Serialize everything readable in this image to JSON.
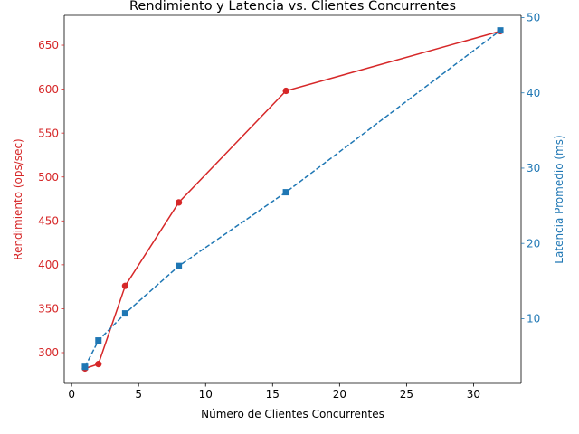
{
  "chart_data": {
    "type": "line",
    "title": "Rendimiento y Latencia vs. Clientes Concurrentes",
    "xlabel": "Número de Clientes Concurrentes",
    "ylabel_left": "Rendimiento (ops/sec)",
    "ylabel_right": "Latencia Promedio (ms)",
    "x": [
      1,
      2,
      4,
      8,
      16,
      32
    ],
    "xlim": [
      -0.55,
      33.55
    ],
    "xticks": [
      0,
      5,
      10,
      15,
      20,
      25,
      30
    ],
    "ylim_left": [
      265,
      684
    ],
    "yticks_left": [
      300,
      350,
      400,
      450,
      500,
      550,
      600,
      650
    ],
    "ylim_right": [
      1.4,
      50.3
    ],
    "yticks_right": [
      10,
      20,
      30,
      40,
      50
    ],
    "grid": false,
    "legend": "none",
    "series": [
      {
        "axis": "left",
        "values": [
          282,
          287,
          376,
          471,
          598,
          666
        ],
        "color": "#d62728",
        "line_style": "solid",
        "marker": "circle"
      },
      {
        "axis": "right",
        "values": [
          3.6,
          7.1,
          10.7,
          17.0,
          26.8,
          48.3
        ],
        "color": "#1f77b4",
        "line_style": "dashed",
        "marker": "square"
      }
    ],
    "colors": {
      "left_axis": "#d62728",
      "right_axis": "#1f77b4",
      "frame": "#000000"
    }
  }
}
